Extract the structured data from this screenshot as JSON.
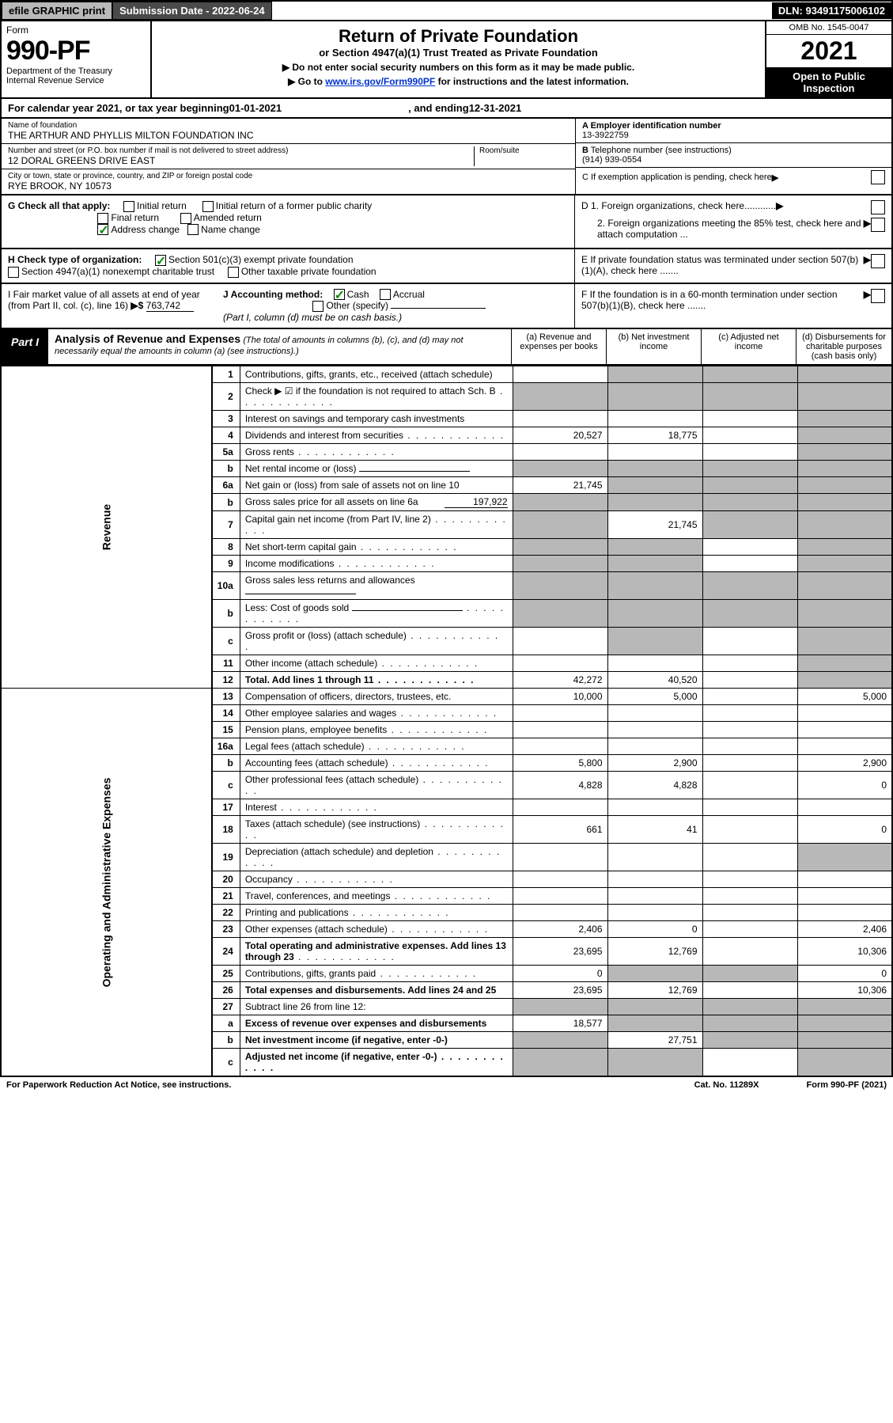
{
  "topbar": {
    "efile": "efile GRAPHIC print",
    "submission_label": "Submission Date - 2022-06-24",
    "dln": "DLN: 93491175006102"
  },
  "header": {
    "form_word": "Form",
    "form_no": "990-PF",
    "dept": "Department of the Treasury",
    "irs": "Internal Revenue Service",
    "title": "Return of Private Foundation",
    "subtitle": "or Section 4947(a)(1) Trust Treated as Private Foundation",
    "warn": "▶ Do not enter social security numbers on this form as it may be made public.",
    "goto_pre": "▶ Go to ",
    "goto_link": "www.irs.gov/Form990PF",
    "goto_post": " for instructions and the latest information.",
    "omb": "OMB No. 1545-0047",
    "year": "2021",
    "open": "Open to Public Inspection"
  },
  "calyear": {
    "pre": "For calendar year 2021, or tax year beginning ",
    "begin": "01-01-2021",
    "mid": ", and ending ",
    "end": "12-31-2021"
  },
  "id": {
    "name_lbl": "Name of foundation",
    "name": "THE ARTHUR AND PHYLLIS MILTON FOUNDATION INC",
    "addr_lbl": "Number and street (or P.O. box number if mail is not delivered to street address)",
    "addr": "12 DORAL GREENS DRIVE EAST",
    "room_lbl": "Room/suite",
    "city_lbl": "City or town, state or province, country, and ZIP or foreign postal code",
    "city": "RYE BROOK, NY  10573",
    "a_lbl": "A Employer identification number",
    "a_val": "13-3922759",
    "b_lbl": "B",
    "b_txt": " Telephone number (see instructions)",
    "b_val": "(914) 939-0554",
    "c_txt": "C If exemption application is pending, check here",
    "d1": "D 1. Foreign organizations, check here............",
    "d2": "2. Foreign organizations meeting the 85% test, check here and attach computation ...",
    "e": "E  If private foundation status was terminated under section 507(b)(1)(A), check here .......",
    "f": "F  If the foundation is in a 60-month termination under section 507(b)(1)(B), check here ......."
  },
  "g": {
    "label": "G Check all that apply:",
    "initial": "Initial return",
    "final": "Final return",
    "address": "Address change",
    "initial_former": "Initial return of a former public charity",
    "amended": "Amended return",
    "name_change": "Name change"
  },
  "h": {
    "label": "H Check type of organization:",
    "c3": "Section 501(c)(3) exempt private foundation",
    "x4947": "Section 4947(a)(1) nonexempt charitable trust",
    "other_tax": "Other taxable private foundation"
  },
  "i": {
    "label": "I Fair market value of all assets at end of year (from Part II, col. (c), line 16)",
    "arrow": "▶$",
    "val": "763,742"
  },
  "j": {
    "label": "J Accounting method:",
    "cash": "Cash",
    "accrual": "Accrual",
    "other": "Other (specify)",
    "note": "(Part I, column (d) must be on cash basis.)"
  },
  "part1": {
    "label": "Part I",
    "title": "Analysis of Revenue and Expenses",
    "note": " (The total of amounts in columns (b), (c), and (d) may not necessarily equal the amounts in column (a) (see instructions).)",
    "col_a": "(a)  Revenue and expenses per books",
    "col_b": "(b)  Net investment income",
    "col_c": "(c)  Adjusted net income",
    "col_d": "(d)  Disbursements for charitable purposes (cash basis only)"
  },
  "side": {
    "revenue": "Revenue",
    "expenses": "Operating and Administrative Expenses"
  },
  "rows": [
    {
      "ln": "1",
      "desc": "Contributions, gifts, grants, etc., received (attach schedule)",
      "a": "",
      "b_grey": true,
      "c_grey": true,
      "d_grey": true
    },
    {
      "ln": "2",
      "desc": "Check ▶ ☑ if the foundation is not required to attach Sch. B",
      "dots": true,
      "a_grey": true,
      "b_grey": true,
      "c_grey": true,
      "d_grey": true
    },
    {
      "ln": "3",
      "desc": "Interest on savings and temporary cash investments",
      "d_grey": true
    },
    {
      "ln": "4",
      "desc": "Dividends and interest from securities",
      "dots": true,
      "a": "20,527",
      "b": "18,775",
      "d_grey": true
    },
    {
      "ln": "5a",
      "desc": "Gross rents",
      "dots": true,
      "d_grey": true
    },
    {
      "ln": "b",
      "desc": "Net rental income or (loss)",
      "uline": true,
      "a_grey": true,
      "b_grey": true,
      "c_grey": true,
      "d_grey": true
    },
    {
      "ln": "6a",
      "desc": "Net gain or (loss) from sale of assets not on line 10",
      "a": "21,745",
      "b_grey": true,
      "c_grey": true,
      "d_grey": true
    },
    {
      "ln": "b",
      "desc": "Gross sales price for all assets on line 6a",
      "inline_val": "197,922",
      "a_grey": true,
      "b_grey": true,
      "c_grey": true,
      "d_grey": true
    },
    {
      "ln": "7",
      "desc": "Capital gain net income (from Part IV, line 2)",
      "dots": true,
      "a_grey": true,
      "b": "21,745",
      "c_grey": true,
      "d_grey": true
    },
    {
      "ln": "8",
      "desc": "Net short-term capital gain",
      "dots": true,
      "a_grey": true,
      "b_grey": true,
      "d_grey": true
    },
    {
      "ln": "9",
      "desc": "Income modifications",
      "dots": true,
      "a_grey": true,
      "b_grey": true,
      "d_grey": true
    },
    {
      "ln": "10a",
      "desc": "Gross sales less returns and allowances",
      "uline": true,
      "a_grey": true,
      "b_grey": true,
      "c_grey": true,
      "d_grey": true
    },
    {
      "ln": "b",
      "desc": "Less: Cost of goods sold",
      "dots": true,
      "uline": true,
      "a_grey": true,
      "b_grey": true,
      "c_grey": true,
      "d_grey": true
    },
    {
      "ln": "c",
      "desc": "Gross profit or (loss) (attach schedule)",
      "dots": true,
      "b_grey": true,
      "d_grey": true
    },
    {
      "ln": "11",
      "desc": "Other income (attach schedule)",
      "dots": true,
      "d_grey": true
    },
    {
      "ln": "12",
      "desc": "Total. Add lines 1 through 11",
      "dots": true,
      "bold": true,
      "a": "42,272",
      "b": "40,520",
      "d_grey": true
    },
    {
      "ln": "13",
      "desc": "Compensation of officers, directors, trustees, etc.",
      "a": "10,000",
      "b": "5,000",
      "d": "5,000"
    },
    {
      "ln": "14",
      "desc": "Other employee salaries and wages",
      "dots": true
    },
    {
      "ln": "15",
      "desc": "Pension plans, employee benefits",
      "dots": true
    },
    {
      "ln": "16a",
      "desc": "Legal fees (attach schedule)",
      "dots": true
    },
    {
      "ln": "b",
      "desc": "Accounting fees (attach schedule)",
      "dots": true,
      "a": "5,800",
      "b": "2,900",
      "d": "2,900"
    },
    {
      "ln": "c",
      "desc": "Other professional fees (attach schedule)",
      "dots": true,
      "a": "4,828",
      "b": "4,828",
      "d": "0"
    },
    {
      "ln": "17",
      "desc": "Interest",
      "dots": true
    },
    {
      "ln": "18",
      "desc": "Taxes (attach schedule) (see instructions)",
      "dots": true,
      "a": "661",
      "b": "41",
      "d": "0"
    },
    {
      "ln": "19",
      "desc": "Depreciation (attach schedule) and depletion",
      "dots": true,
      "d_grey": true
    },
    {
      "ln": "20",
      "desc": "Occupancy",
      "dots": true
    },
    {
      "ln": "21",
      "desc": "Travel, conferences, and meetings",
      "dots": true
    },
    {
      "ln": "22",
      "desc": "Printing and publications",
      "dots": true
    },
    {
      "ln": "23",
      "desc": "Other expenses (attach schedule)",
      "dots": true,
      "a": "2,406",
      "b": "0",
      "d": "2,406"
    },
    {
      "ln": "24",
      "desc": "Total operating and administrative expenses. Add lines 13 through 23",
      "dots": true,
      "bold_first": true,
      "a": "23,695",
      "b": "12,769",
      "d": "10,306"
    },
    {
      "ln": "25",
      "desc": "Contributions, gifts, grants paid",
      "dots": true,
      "a": "0",
      "b_grey": true,
      "c_grey": true,
      "d": "0"
    },
    {
      "ln": "26",
      "desc": "Total expenses and disbursements. Add lines 24 and 25",
      "bold": true,
      "a": "23,695",
      "b": "12,769",
      "d": "10,306"
    },
    {
      "ln": "27",
      "desc": "Subtract line 26 from line 12:",
      "a_grey": true,
      "b_grey": true,
      "c_grey": true,
      "d_grey": true
    },
    {
      "ln": "a",
      "desc": "Excess of revenue over expenses and disbursements",
      "bold": true,
      "a": "18,577",
      "b_grey": true,
      "c_grey": true,
      "d_grey": true
    },
    {
      "ln": "b",
      "desc": "Net investment income (if negative, enter -0-)",
      "bold": true,
      "a_grey": true,
      "b": "27,751",
      "c_grey": true,
      "d_grey": true
    },
    {
      "ln": "c",
      "desc": "Adjusted net income (if negative, enter -0-)",
      "bold": true,
      "dots": true,
      "a_grey": true,
      "b_grey": true,
      "d_grey": true
    }
  ],
  "footer": {
    "left": "For Paperwork Reduction Act Notice, see instructions.",
    "mid": "Cat. No. 11289X",
    "right": "Form 990-PF (2021)"
  },
  "colors": {
    "grey_bg": "#b8b8b8",
    "dark_grey": "#4a4a4a",
    "link": "#0033cc",
    "check_green": "#0a8a0a"
  }
}
